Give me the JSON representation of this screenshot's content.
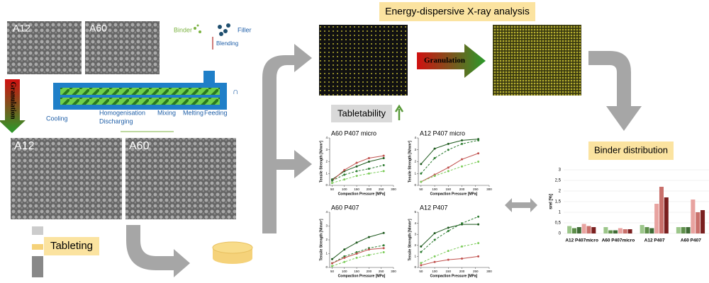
{
  "header": {
    "title": "Energy-dispersive X-ray analysis"
  },
  "sem_small": [
    "A12",
    "A60"
  ],
  "sem_large": [
    "A12",
    "A60"
  ],
  "process": {
    "binder": "Binder",
    "filler": "Filler",
    "blending": "Blending",
    "cooling": "Cooling",
    "homogenisation": "Homogenisation",
    "discharging": "Discharging",
    "mixing": "Mixing",
    "melting": "Melting",
    "feeding": "Feeding"
  },
  "labels": {
    "granulation_left": "Granulation",
    "granulation_edx": "Granulation",
    "tabletability": "Tabletability",
    "tableting": "Tableting",
    "binder_distribution": "Binder distribution"
  },
  "tabletability_charts": [
    {
      "title": "A60 P407 micro",
      "xlabel": "Compaction Pressure [MPa]",
      "ylabel": "Tensile Strength [N/mm²]",
      "xlim": [
        40,
        300
      ],
      "xticks": [
        50,
        100,
        150,
        200,
        250,
        300
      ],
      "ylim": [
        0,
        4
      ],
      "yticks": [
        0,
        1,
        2,
        3,
        4
      ],
      "x": [
        50,
        100,
        150,
        200,
        260
      ],
      "series": [
        {
          "color": "#1e5a1e",
          "dashed": false,
          "values": [
            0.5,
            1.2,
            1.6,
            2.0,
            2.3
          ]
        },
        {
          "color": "#c0504d",
          "dashed": false,
          "values": [
            0.4,
            1.3,
            1.9,
            2.3,
            2.5
          ]
        },
        {
          "color": "#2e7d32",
          "dashed": true,
          "values": [
            0.4,
            0.9,
            1.2,
            1.4,
            1.7
          ]
        },
        {
          "color": "#7ccc5a",
          "dashed": true,
          "values": [
            0.2,
            0.5,
            0.8,
            1.0,
            1.2
          ]
        }
      ]
    },
    {
      "title": "A12 P407 micro",
      "xlabel": "Compaction Pressure [MPa]",
      "ylabel": "Tensile Strength [N/mm²]",
      "xlim": [
        40,
        300
      ],
      "xticks": [
        50,
        100,
        150,
        200,
        250,
        300
      ],
      "ylim": [
        0,
        4
      ],
      "yticks": [
        0,
        1,
        2,
        3,
        4
      ],
      "x": [
        50,
        100,
        150,
        200,
        260
      ],
      "series": [
        {
          "color": "#1e5a1e",
          "dashed": false,
          "values": [
            1.8,
            3.1,
            3.5,
            3.8,
            3.9
          ]
        },
        {
          "color": "#2e7d32",
          "dashed": true,
          "values": [
            1.0,
            2.3,
            3.0,
            3.5,
            3.8
          ]
        },
        {
          "color": "#c0504d",
          "dashed": false,
          "values": [
            0.3,
            0.9,
            1.5,
            2.2,
            2.7
          ]
        },
        {
          "color": "#7ccc5a",
          "dashed": true,
          "values": [
            0.3,
            0.8,
            1.2,
            1.6,
            2.0
          ]
        }
      ]
    },
    {
      "title": "A60 P407",
      "xlabel": "Compaction Pressure [MPa]",
      "ylabel": "Tensile Strength [N/mm²]",
      "xlim": [
        40,
        300
      ],
      "xticks": [
        50,
        100,
        150,
        200,
        250,
        300
      ],
      "ylim": [
        0,
        4
      ],
      "yticks": [
        0,
        1,
        2,
        3,
        4
      ],
      "x": [
        50,
        100,
        150,
        200,
        260
      ],
      "series": [
        {
          "color": "#1e5a1e",
          "dashed": false,
          "values": [
            0.6,
            1.3,
            1.8,
            2.2,
            2.5
          ]
        },
        {
          "color": "#2e7d32",
          "dashed": true,
          "values": [
            0.3,
            0.8,
            1.1,
            1.4,
            1.6
          ]
        },
        {
          "color": "#c0504d",
          "dashed": false,
          "values": [
            0.3,
            0.7,
            1.0,
            1.3,
            1.4
          ]
        },
        {
          "color": "#7ccc5a",
          "dashed": true,
          "values": [
            0.1,
            0.4,
            0.7,
            0.9,
            1.1
          ]
        }
      ]
    },
    {
      "title": "A12 P407",
      "xlabel": "Compaction Pressure [MPa]",
      "ylabel": "Tensile Strength [N/mm²]",
      "xlim": [
        40,
        300
      ],
      "xticks": [
        50,
        100,
        150,
        200,
        250,
        300
      ],
      "ylim": [
        0,
        5
      ],
      "yticks": [
        0,
        1,
        2,
        3,
        4,
        5
      ],
      "x": [
        50,
        100,
        150,
        200,
        260
      ],
      "series": [
        {
          "color": "#1e5a1e",
          "dashed": false,
          "values": [
            1.9,
            3.1,
            3.6,
            3.9,
            3.9
          ]
        },
        {
          "color": "#2e7d32",
          "dashed": true,
          "values": [
            1.4,
            2.5,
            3.3,
            4.0,
            4.6
          ]
        },
        {
          "color": "#7ccc5a",
          "dashed": true,
          "values": [
            0.4,
            1.0,
            1.5,
            1.9,
            2.2
          ]
        },
        {
          "color": "#c0504d",
          "dashed": false,
          "values": [
            0.2,
            0.5,
            0.7,
            0.8,
            1.0
          ]
        }
      ]
    }
  ],
  "binder_chart": {
    "ylabel": "srel [%]",
    "ylim": [
      0,
      3
    ],
    "yticks": [
      0,
      {
        "value": 0.5,
        "label": "0,5"
      },
      1,
      {
        "value": 1.5,
        "label": "1,5"
      },
      2,
      {
        "value": 2.5,
        "label": "2,5"
      },
      3
    ],
    "categories": [
      "A12 P407micro",
      "A60 P407micro",
      "A12 P407",
      "A60 P407"
    ],
    "colors": [
      "#9cc68a",
      "#5e8f4a",
      "#3f6b35",
      "#e8a3a0",
      "#c9706b",
      "#7a1f1f"
    ],
    "values": [
      [
        0.35,
        0.25,
        0.3,
        0.45,
        0.35,
        0.3
      ],
      [
        0.3,
        0.15,
        0.15,
        0.25,
        0.2,
        0.2
      ],
      [
        0.4,
        0.3,
        0.25,
        1.4,
        2.2,
        1.7
      ],
      [
        0.3,
        0.3,
        0.3,
        1.6,
        1.0,
        1.1
      ]
    ]
  }
}
